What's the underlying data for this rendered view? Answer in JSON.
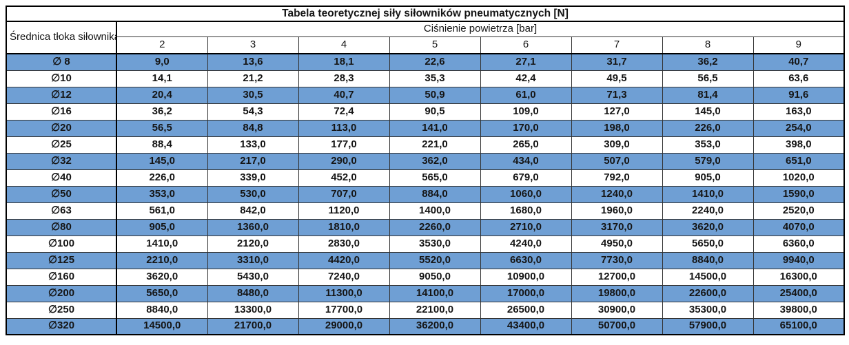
{
  "table": {
    "title": "Tabela teoretycznej siły siłowników pneumatycznych [N]",
    "row_header": "Średnica tłoka siłownika",
    "col_group_header": "Ciśnienie powietrza [bar]",
    "pressures": [
      "2",
      "3",
      "4",
      "5",
      "6",
      "7",
      "8",
      "9"
    ],
    "rows": [
      {
        "d": "∅ 8",
        "v": [
          "9,0",
          "13,6",
          "18,1",
          "22,6",
          "27,1",
          "31,7",
          "36,2",
          "40,7"
        ]
      },
      {
        "d": "∅10",
        "v": [
          "14,1",
          "21,2",
          "28,3",
          "35,3",
          "42,4",
          "49,5",
          "56,5",
          "63,6"
        ]
      },
      {
        "d": "∅12",
        "v": [
          "20,4",
          "30,5",
          "40,7",
          "50,9",
          "61,0",
          "71,3",
          "81,4",
          "91,6"
        ]
      },
      {
        "d": "∅16",
        "v": [
          "36,2",
          "54,3",
          "72,4",
          "90,5",
          "109,0",
          "127,0",
          "145,0",
          "163,0"
        ]
      },
      {
        "d": "∅20",
        "v": [
          "56,5",
          "84,8",
          "113,0",
          "141,0",
          "170,0",
          "198,0",
          "226,0",
          "254,0"
        ]
      },
      {
        "d": "∅25",
        "v": [
          "88,4",
          "133,0",
          "177,0",
          "221,0",
          "265,0",
          "309,0",
          "353,0",
          "398,0"
        ]
      },
      {
        "d": "∅32",
        "v": [
          "145,0",
          "217,0",
          "290,0",
          "362,0",
          "434,0",
          "507,0",
          "579,0",
          "651,0"
        ]
      },
      {
        "d": "∅40",
        "v": [
          "226,0",
          "339,0",
          "452,0",
          "565,0",
          "679,0",
          "792,0",
          "905,0",
          "1020,0"
        ]
      },
      {
        "d": "∅50",
        "v": [
          "353,0",
          "530,0",
          "707,0",
          "884,0",
          "1060,0",
          "1240,0",
          "1410,0",
          "1590,0"
        ]
      },
      {
        "d": "∅63",
        "v": [
          "561,0",
          "842,0",
          "1120,0",
          "1400,0",
          "1680,0",
          "1960,0",
          "2240,0",
          "2520,0"
        ]
      },
      {
        "d": "∅80",
        "v": [
          "905,0",
          "1360,0",
          "1810,0",
          "2260,0",
          "2710,0",
          "3170,0",
          "3620,0",
          "4070,0"
        ]
      },
      {
        "d": "∅100",
        "v": [
          "1410,0",
          "2120,0",
          "2830,0",
          "3530,0",
          "4240,0",
          "4950,0",
          "5650,0",
          "6360,0"
        ]
      },
      {
        "d": "∅125",
        "v": [
          "2210,0",
          "3310,0",
          "4420,0",
          "5520,0",
          "6630,0",
          "7730,0",
          "8840,0",
          "9940,0"
        ]
      },
      {
        "d": "∅160",
        "v": [
          "3620,0",
          "5430,0",
          "7240,0",
          "9050,0",
          "10900,0",
          "12700,0",
          "14500,0",
          "16300,0"
        ]
      },
      {
        "d": "∅200",
        "v": [
          "5650,0",
          "8480,0",
          "11300,0",
          "14100,0",
          "17000,0",
          "19800,0",
          "22600,0",
          "25400,0"
        ]
      },
      {
        "d": "∅250",
        "v": [
          "8840,0",
          "13300,0",
          "17700,0",
          "22100,0",
          "26500,0",
          "30900,0",
          "35300,0",
          "39800,0"
        ]
      },
      {
        "d": "∅320",
        "v": [
          "14500,0",
          "21700,0",
          "29000,0",
          "36200,0",
          "43400,0",
          "50700,0",
          "57900,0",
          "65100,0"
        ]
      }
    ],
    "colors": {
      "band_blue": "#6F9FD4",
      "band_white": "#FFFFFF",
      "border": "#333333",
      "outer_border": "#000000",
      "text": "#151515"
    }
  }
}
